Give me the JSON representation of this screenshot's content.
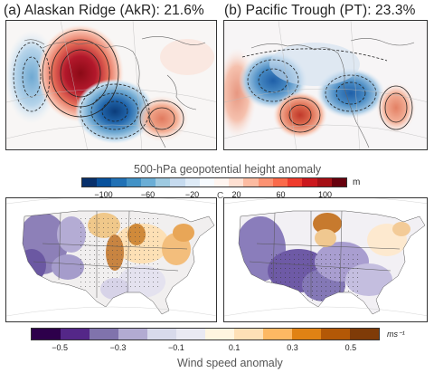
{
  "panel_a": {
    "title": "(a) Alaskan Ridge (AkR): 21.6%"
  },
  "panel_b": {
    "title": "(b) Pacific Trough (PT): 23.3%"
  },
  "height_colorbar": {
    "title": "500-hPa geopotential height anomaly",
    "unit": "m",
    "ticks": [
      "−100",
      "−60",
      "−20",
      "20",
      "60",
      "100"
    ],
    "colors": [
      "#08306b",
      "#08519c",
      "#2171b5",
      "#4292c6",
      "#6baed6",
      "#9ecae1",
      "#c6dbef",
      "#deebf7",
      "#f7fbff",
      "#fff5f0",
      "#fee0d2",
      "#fcbba1",
      "#fc9272",
      "#fb6a4a",
      "#ef3b2c",
      "#cb181d",
      "#a50f15",
      "#67000d"
    ]
  },
  "wind_colorbar": {
    "title": "Wind speed anomaly",
    "unit": "ms⁻¹",
    "ticks": [
      "−0.5",
      "−0.3",
      "−0.1",
      "0.1",
      "0.3",
      "0.5"
    ],
    "colors": [
      "#2d004b",
      "#542788",
      "#8073ac",
      "#b2abd2",
      "#d8daeb",
      "#e9e9f3",
      "#fff5e0",
      "#fee0b6",
      "#fdb863",
      "#e08214",
      "#b35806",
      "#7f3b08"
    ]
  },
  "stray_label": "C"
}
